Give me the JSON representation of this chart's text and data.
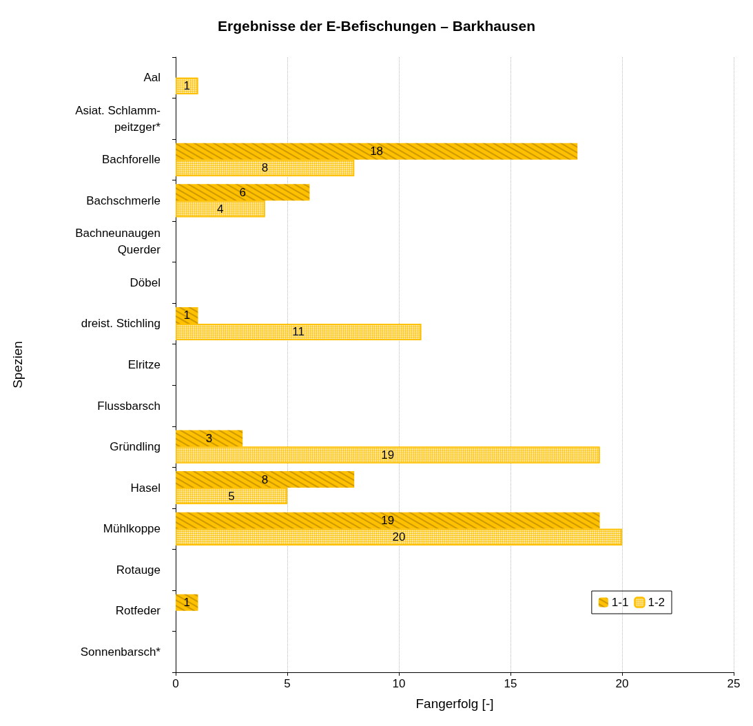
{
  "chart_data": {
    "type": "bar",
    "orientation": "horizontal",
    "title": "Ergebnisse der E-Befischungen – Barkhausen",
    "xlabel": "Fangerfolg [-]",
    "ylabel": "Spezien",
    "categories": [
      "Aal",
      "Asiat. Schlamm-\npeitzger*",
      "Bachforelle",
      "Bachschmerle",
      "Bachneunaugen\nQuerder",
      "Döbel",
      "dreist. Stichling",
      "Elritze",
      "Flussbarsch",
      "Gründling",
      "Hasel",
      "Mühlkoppe",
      "Rotauge",
      "Rotfeder",
      "Sonnenbarsch*"
    ],
    "series": [
      {
        "name": "1-1",
        "color": "#ffc000",
        "values": [
          null,
          null,
          18,
          6,
          null,
          null,
          1,
          null,
          null,
          3,
          8,
          19,
          null,
          1,
          null
        ]
      },
      {
        "name": "1-2",
        "color": "#ffc000",
        "values": [
          1,
          null,
          8,
          4,
          null,
          null,
          11,
          null,
          null,
          19,
          5,
          20,
          null,
          null,
          null
        ]
      }
    ],
    "xlim": [
      0,
      25
    ],
    "xticks": [
      0,
      5,
      10,
      15,
      20,
      25
    ],
    "grid": "x",
    "legend": "bottom right",
    "data_labels": true
  }
}
